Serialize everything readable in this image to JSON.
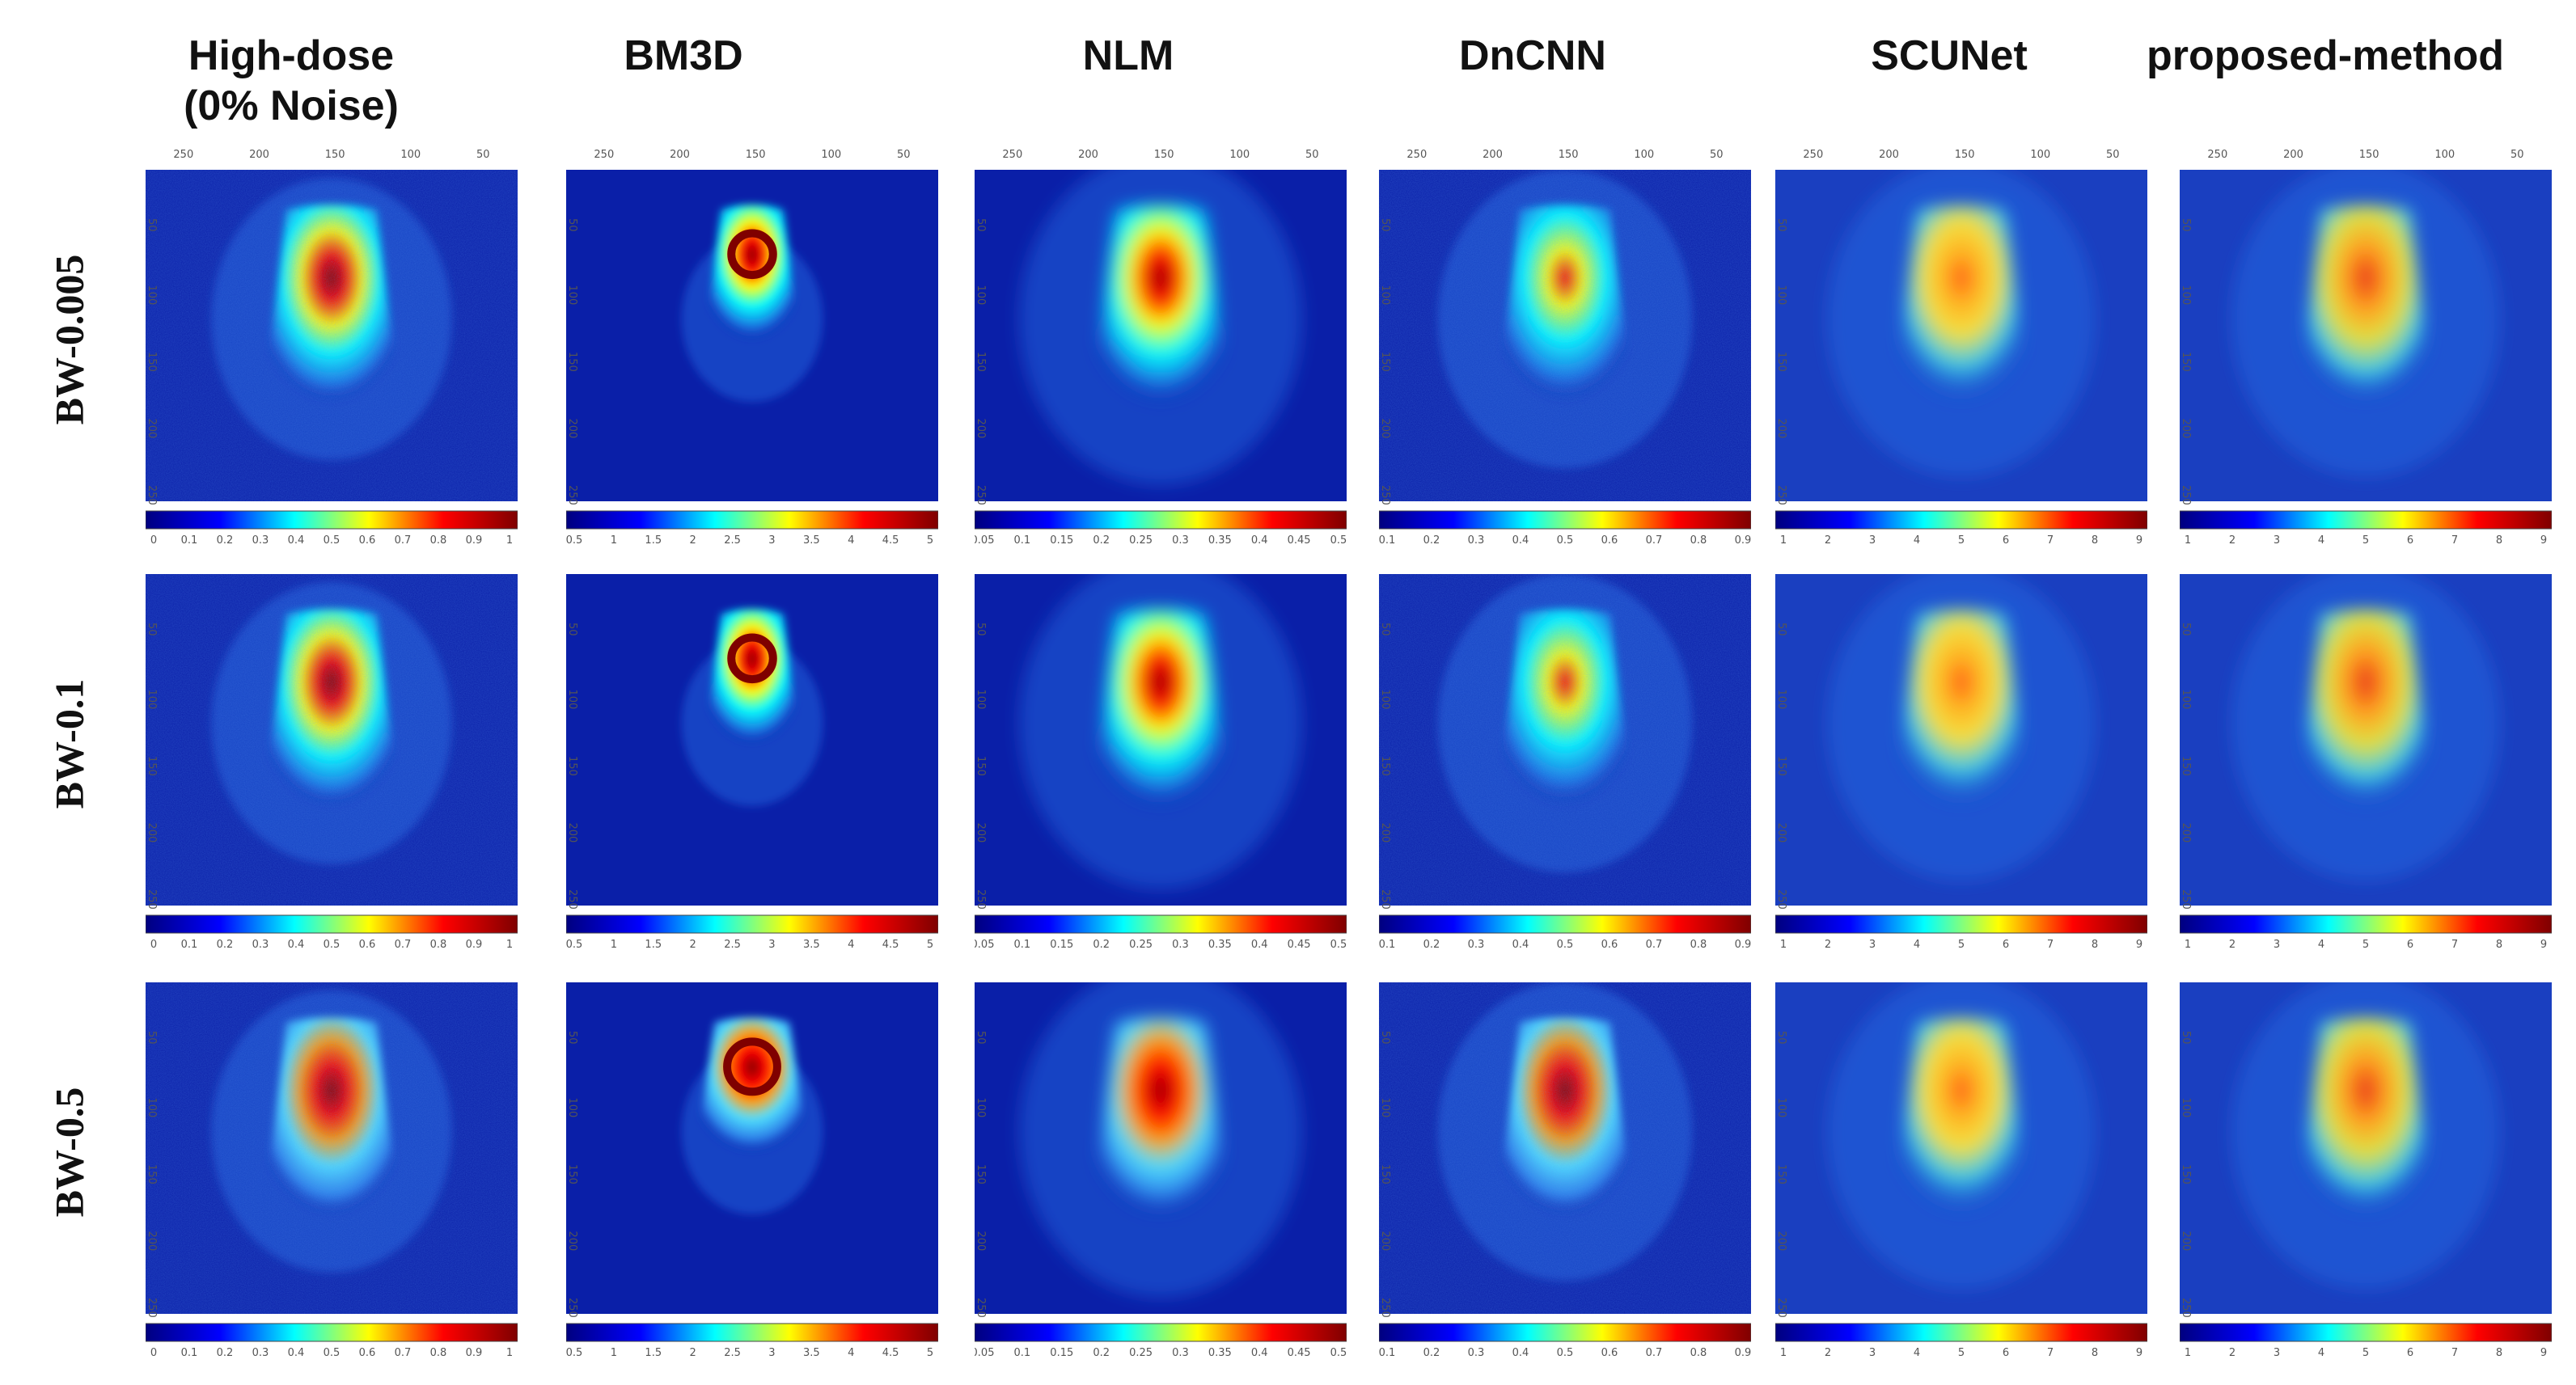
{
  "figure": {
    "columns": [
      {
        "key": "high_dose",
        "label_line1": "High-dose",
        "label_line2": "(0% Noise)"
      },
      {
        "key": "bm3d",
        "label_line1": "BM3D",
        "label_line2": ""
      },
      {
        "key": "nlm",
        "label_line1": "NLM",
        "label_line2": ""
      },
      {
        "key": "dncnn",
        "label_line1": "DnCNN",
        "label_line2": ""
      },
      {
        "key": "scunet",
        "label_line1": "SCUNet",
        "label_line2": ""
      },
      {
        "key": "proposed",
        "label_line1": "proposed-method",
        "label_line2": ""
      }
    ],
    "rows": [
      {
        "key": "bw_0005",
        "label": "BW-0.005"
      },
      {
        "key": "bw_01",
        "label": "BW-0.1"
      },
      {
        "key": "bw_05",
        "label": "BW-0.5"
      }
    ],
    "axis": {
      "x_ticks": [
        "250",
        "200",
        "150",
        "100",
        "50"
      ],
      "y_ticks": [
        "50",
        "100",
        "150",
        "200",
        "250"
      ]
    },
    "colorbar_ticks": {
      "high_dose": [
        "0",
        "0.1",
        "0.2",
        "0.3",
        "0.4",
        "0.5",
        "0.6",
        "0.7",
        "0.8",
        "0.9",
        "1"
      ],
      "bm3d": [
        "0.5",
        "1",
        "1.5",
        "2",
        "2.5",
        "3",
        "3.5",
        "4",
        "4.5",
        "5"
      ],
      "nlm": [
        "0.05",
        "0.1",
        "0.15",
        "0.2",
        "0.25",
        "0.3",
        "0.35",
        "0.4",
        "0.45",
        "0.5"
      ],
      "dncnn": [
        "0.1",
        "0.2",
        "0.3",
        "0.4",
        "0.5",
        "0.6",
        "0.7",
        "0.8",
        "0.9"
      ],
      "scunet": [
        "1",
        "2",
        "3",
        "4",
        "5",
        "6",
        "7",
        "8",
        "9"
      ],
      "proposed": [
        "1",
        "2",
        "3",
        "4",
        "5",
        "6",
        "7",
        "8",
        "9"
      ]
    },
    "colormap": [
      "#00007f",
      "#0000ff",
      "#00ffff",
      "#ffff00",
      "#ff0000",
      "#7f0000"
    ],
    "background_color": "#0a1fa8"
  }
}
